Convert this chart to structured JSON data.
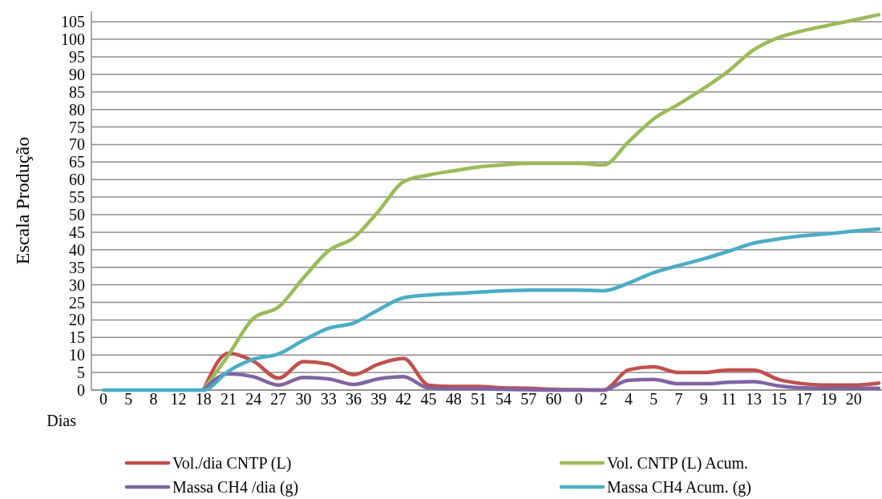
{
  "chart_data": {
    "type": "line",
    "ylabel": "Escala Produção",
    "xlabel": "Dias",
    "categories": [
      "0",
      "5",
      "8",
      "12",
      "18",
      "21",
      "24",
      "27",
      "30",
      "33",
      "36",
      "39",
      "42",
      "45",
      "48",
      "51",
      "54",
      "57",
      "60",
      "0",
      "2",
      "4",
      "5",
      "7",
      "9",
      "11",
      "13",
      "15",
      "17",
      "19",
      "20",
      null
    ],
    "series": [
      {
        "name": "Vol./dia CNTP (L)",
        "color": "#c0504d",
        "values": [
          null,
          null,
          null,
          null,
          0,
          10.5,
          8.2,
          3.4,
          8.1,
          7.4,
          4.4,
          7.4,
          9,
          1.4,
          1,
          1,
          0.6,
          0.5,
          0.2,
          0.1,
          0,
          5.8,
          6.6,
          5,
          5,
          5.7,
          5.7,
          3,
          1.8,
          1.4,
          1.4,
          2
        ]
      },
      {
        "name": "Vol. CNTP (L) Acum.",
        "color": "#9bbb59",
        "values": [
          null,
          null,
          null,
          null,
          0,
          10,
          20.5,
          23.7,
          32,
          39.7,
          43.4,
          51,
          59.4,
          61.3,
          62.5,
          63.6,
          64.2,
          64.6,
          64.6,
          64.6,
          64.2,
          70.8,
          77.3,
          81.5,
          86,
          91,
          97,
          100.5,
          102.5,
          104,
          105.5,
          107
        ]
      },
      {
        "name": "Massa CH4 /dia (g)",
        "color": "#8064a2",
        "values": [
          null,
          null,
          null,
          null,
          0,
          4.6,
          3.8,
          1.4,
          3.6,
          3.2,
          1.6,
          3.2,
          3.8,
          0.6,
          0.4,
          0.4,
          0.2,
          0.1,
          0,
          0,
          0,
          2.8,
          3,
          1.8,
          1.8,
          2.2,
          2.4,
          1.2,
          0.6,
          0.5,
          0.5,
          0.5
        ]
      },
      {
        "name": "Massa CH4 Acum. (g)",
        "color": "#4bacc6",
        "values": [
          0,
          0,
          0,
          0,
          0,
          5.4,
          8.8,
          10.3,
          14.2,
          17.6,
          19.1,
          22.9,
          26.3,
          27.1,
          27.5,
          27.9,
          28.3,
          28.5,
          28.5,
          28.5,
          28.3,
          30.5,
          33.5,
          35.5,
          37.4,
          39.6,
          41.9,
          43.1,
          44,
          44.6,
          45.3,
          45.9
        ]
      }
    ],
    "ylim": [
      0,
      108
    ],
    "yticks": [
      0,
      5,
      10,
      15,
      20,
      25,
      30,
      35,
      40,
      45,
      50,
      55,
      60,
      65,
      70,
      75,
      80,
      85,
      90,
      95,
      100,
      105
    ],
    "grid": "y",
    "legend": "bottom",
    "marker": "none",
    "line_style": "solid"
  }
}
